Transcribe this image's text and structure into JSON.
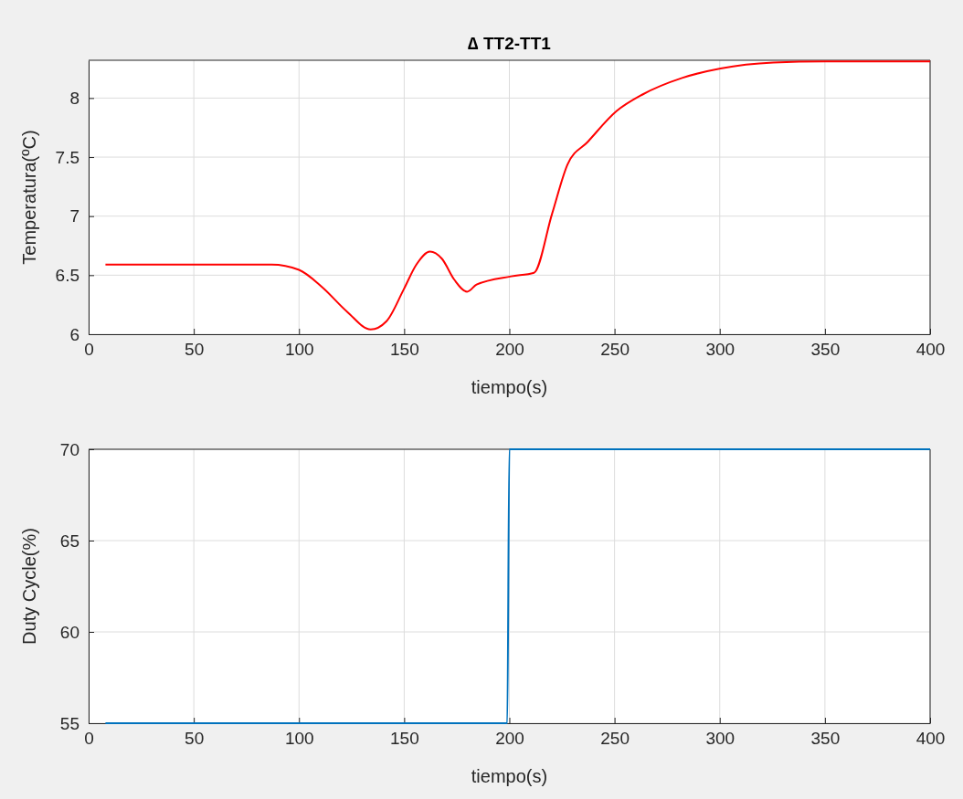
{
  "chart_data": [
    {
      "type": "line",
      "title": "∆ TT2-TT1",
      "xlabel": "tiempo(s)",
      "ylabel": "Temperatura(ºC)",
      "xlim": [
        0,
        400
      ],
      "xticks": [
        0,
        50,
        100,
        150,
        200,
        250,
        300,
        350,
        400
      ],
      "ylim": [
        6,
        8.32
      ],
      "yticks": [
        6,
        6.5,
        7,
        7.5,
        8
      ],
      "grid": true,
      "series": [
        {
          "color": "#ff0000",
          "x": [
            8,
            87,
            100,
            110.9,
            122.9,
            134.1,
            141.6,
            149.8,
            155.8,
            162.3,
            167.9,
            173.9,
            179.9,
            184.4,
            200.9,
            211.7,
            220.3,
            227.7,
            237.3,
            251,
            263.3,
            282.1,
            300.4,
            325.5,
            350,
            400
          ],
          "values": [
            6.59,
            6.59,
            6.545,
            6.4,
            6.19,
            6.04,
            6.11,
            6.38,
            6.59,
            6.7,
            6.64,
            6.46,
            6.36,
            6.42,
            6.49,
            6.52,
            7.02,
            7.44,
            7.63,
            7.89,
            8.03,
            8.17,
            8.25,
            8.3,
            8.31,
            8.31
          ]
        }
      ]
    },
    {
      "type": "line",
      "xlabel": "tiempo(s)",
      "ylabel": "Duty Cycle(%)",
      "xlim": [
        0,
        400
      ],
      "xticks": [
        0,
        50,
        100,
        150,
        200,
        250,
        300,
        350,
        400
      ],
      "ylim": [
        55,
        70
      ],
      "yticks": [
        55,
        60,
        65,
        70
      ],
      "grid": true,
      "series": [
        {
          "color": "#0072bd",
          "x": [
            8,
            199,
            200,
            400
          ],
          "values": [
            55,
            55,
            70,
            70
          ]
        }
      ]
    }
  ]
}
